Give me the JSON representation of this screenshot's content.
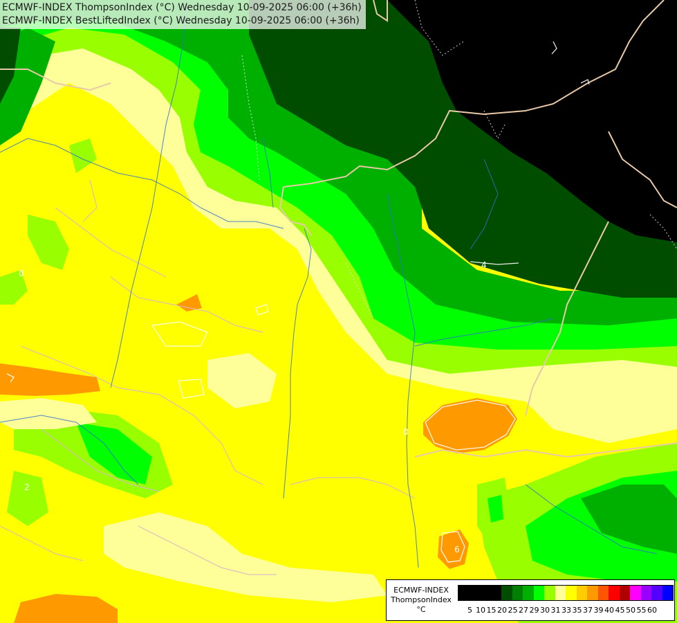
{
  "title": {
    "line1": "ECMWF-INDEX ThompsonIndex (°C) Wednesday 10-09-2025 06:00 (+36h)",
    "line2": "ECMWF-INDEX BestLiftedIndex (°C) Wednesday 10-09-2025 06:00 (+36h)"
  },
  "legend": {
    "label_line1": "ECMWF-INDEX",
    "label_line2": "ThompsonIndex",
    "label_line3": "°C",
    "ticks": [
      "5",
      "10",
      "15",
      "20",
      "25",
      "27",
      "29",
      "30",
      "31",
      "33",
      "35",
      "37",
      "39",
      "40",
      "45",
      "50",
      "55",
      "60"
    ],
    "colors": [
      "#000000",
      "#000000",
      "#000000",
      "#000000",
      "#004d00",
      "#008000",
      "#00b000",
      "#00ff00",
      "#99ff00",
      "#ffff99",
      "#ffff00",
      "#ffcc00",
      "#ff9900",
      "#ff5500",
      "#ff0000",
      "#b00000",
      "#ff00ff",
      "#9900ff",
      "#5500ff",
      "#0000ff"
    ]
  },
  "map_labels": [
    "0",
    "4",
    "2",
    "6",
    "0"
  ],
  "palette": {
    "black": "#000000",
    "dark_green": "#004d00",
    "green": "#008000",
    "mid_green": "#00b000",
    "bright_green": "#00ff00",
    "lime": "#99ff00",
    "light_yellow": "#ffff99",
    "yellow": "#ffff00",
    "orange": "#ff9900",
    "border_line": "#e8c9a8",
    "river_line": "#2f6fd0"
  }
}
